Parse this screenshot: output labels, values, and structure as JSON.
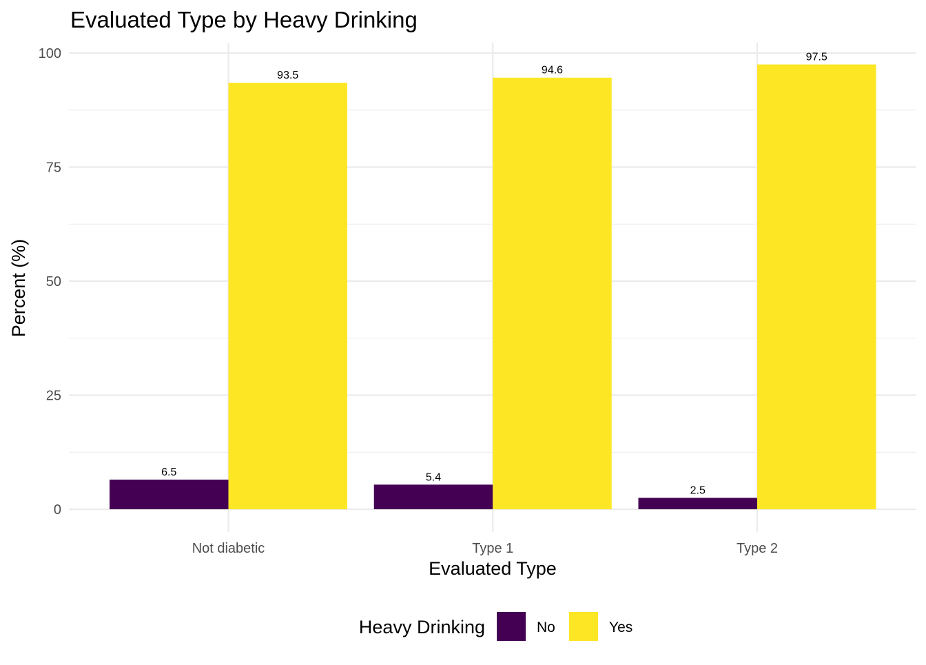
{
  "chart_data": {
    "type": "bar",
    "title": "Evaluated Type by Heavy Drinking",
    "xlabel": "Evaluated Type",
    "ylabel": "Percent (%)",
    "categories": [
      "Not diabetic",
      "Type 1",
      "Type 2"
    ],
    "series": [
      {
        "name": "No",
        "color": "#440154",
        "values": [
          6.5,
          5.4,
          2.5
        ],
        "labels": [
          "6.5",
          "5.4",
          "2.5"
        ]
      },
      {
        "name": "Yes",
        "color": "#FDE725",
        "values": [
          93.5,
          94.6,
          97.5
        ],
        "labels": [
          "93.5",
          "94.6",
          "97.5"
        ]
      }
    ],
    "ylim": [
      0,
      100
    ],
    "yticks": [
      0,
      25,
      50,
      75,
      100
    ],
    "ytick_labels": [
      "0",
      "25",
      "50",
      "75",
      "100"
    ],
    "grid": true,
    "legend": {
      "title": "Heavy Drinking",
      "position": "bottom"
    }
  }
}
